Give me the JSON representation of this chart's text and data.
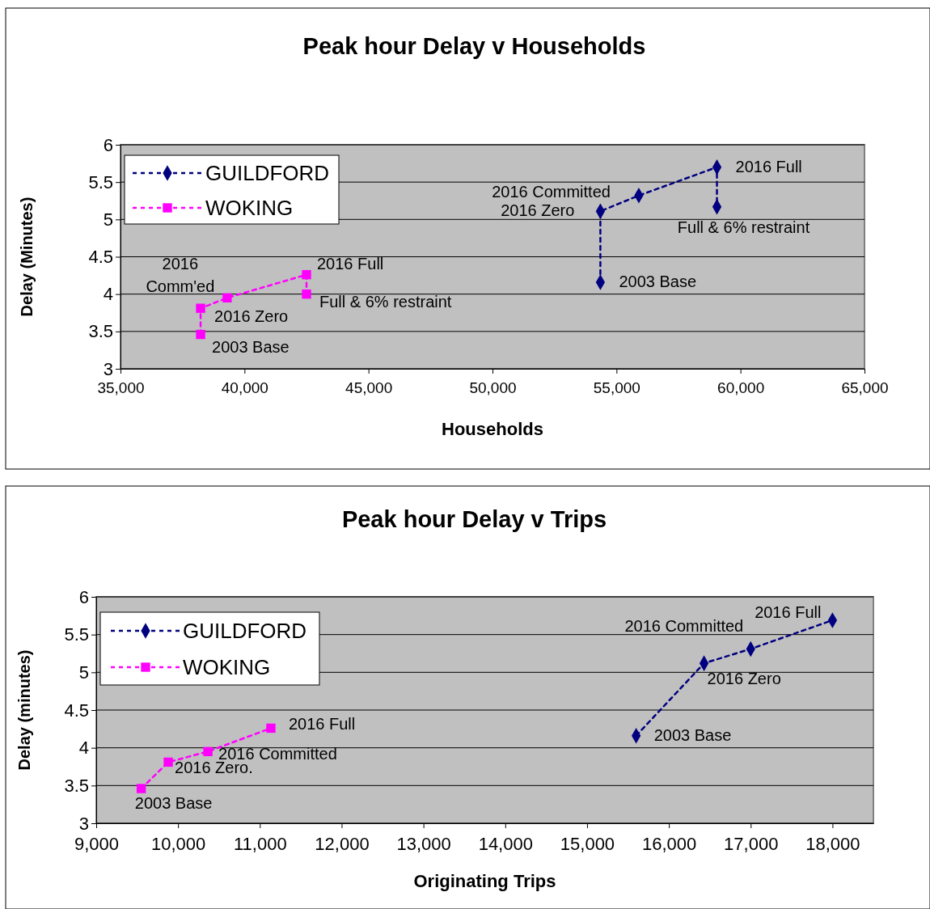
{
  "chart_data": [
    {
      "type": "line",
      "title": "Peak hour Delay v Households",
      "xlabel": "Households",
      "ylabel": "Delay (Minutes)",
      "grid": "y",
      "legend": "top left",
      "line_style": "dashed",
      "xlim": [
        35000,
        65000
      ],
      "xticks": [
        {
          "value": 35000,
          "label": "35,000"
        },
        {
          "value": 40000,
          "label": "40,000"
        },
        {
          "value": 45000,
          "label": "45,000"
        },
        {
          "value": 50000,
          "label": "50,000"
        },
        {
          "value": 55000,
          "label": "55,000"
        },
        {
          "value": 60000,
          "label": "60,000"
        },
        {
          "value": 65000,
          "label": "65,000"
        }
      ],
      "ylim": [
        3,
        6
      ],
      "yticks": [
        3,
        3.5,
        4,
        4.5,
        5,
        5.5,
        6
      ],
      "series": [
        {
          "name": "GUILDFORD",
          "color": "#000080",
          "marker": "diamond",
          "x": [
            54350,
            54350,
            55900,
            59050,
            59050
          ],
          "values": [
            4.16,
            5.11,
            5.32,
            5.7,
            5.17
          ]
        },
        {
          "name": "WOKING",
          "color": "#ff00ff",
          "marker": "square",
          "x": [
            38230,
            38230,
            39300,
            42500,
            42500
          ],
          "values": [
            3.46,
            3.81,
            3.95,
            4.26,
            4.0
          ]
        }
      ],
      "annotations": [
        {
          "text": "2003 Base",
          "x": 54350,
          "y": 4.16
        },
        {
          "text": "2016 Zero",
          "x": 54350,
          "y": 5.11
        },
        {
          "text": "2016 Committed",
          "x": 55900,
          "y": 5.32
        },
        {
          "text": "2016 Full",
          "x": 59050,
          "y": 5.7
        },
        {
          "text": "Full & 6% restraint",
          "x": 59050,
          "y": 5.17
        },
        {
          "text": "2003 Base",
          "x": 38230,
          "y": 3.46
        },
        {
          "text": "2016 Zero",
          "x": 38230,
          "y": 3.81
        },
        {
          "text": "2016 Comm'ed",
          "x": 39300,
          "y": 3.95
        },
        {
          "text": "2016 Full",
          "x": 42500,
          "y": 4.26
        },
        {
          "text": "Full & 6% restraint",
          "x": 42500,
          "y": 4.0
        }
      ]
    },
    {
      "type": "line",
      "title": "Peak hour Delay v Trips",
      "xlabel": "Originating Trips",
      "ylabel": "Delay (minutes)",
      "grid": "y",
      "legend": "top left",
      "line_style": "dashed",
      "xlim": [
        9000,
        18500
      ],
      "xticks": [
        {
          "value": 9000,
          "label": "9,000"
        },
        {
          "value": 10000,
          "label": "10,000"
        },
        {
          "value": 11000,
          "label": "11,000"
        },
        {
          "value": 12000,
          "label": "12,000"
        },
        {
          "value": 13000,
          "label": "13,000"
        },
        {
          "value": 14000,
          "label": "14,000"
        },
        {
          "value": 15000,
          "label": "15,000"
        },
        {
          "value": 16000,
          "label": "16,000"
        },
        {
          "value": 17000,
          "label": "17,000"
        },
        {
          "value": 18000,
          "label": "18,000"
        }
      ],
      "ylim": [
        3,
        6
      ],
      "yticks": [
        3,
        3.5,
        4,
        4.5,
        5,
        5.5,
        6
      ],
      "series": [
        {
          "name": "GUILDFORD",
          "color": "#000080",
          "marker": "diamond",
          "x": [
            15600,
            16430,
            17000,
            18000
          ],
          "values": [
            4.16,
            5.12,
            5.31,
            5.69
          ]
        },
        {
          "name": "WOKING",
          "color": "#ff00ff",
          "marker": "square",
          "x": [
            9550,
            9880,
            10365,
            11135
          ],
          "values": [
            3.46,
            3.81,
            3.95,
            4.26
          ]
        }
      ],
      "annotations": [
        {
          "text": "2003 Base",
          "x": 15600,
          "y": 4.16
        },
        {
          "text": "2016 Zero",
          "x": 16430,
          "y": 5.12
        },
        {
          "text": "2016 Committed",
          "x": 17000,
          "y": 5.31
        },
        {
          "text": "2016 Full",
          "x": 18000,
          "y": 5.69
        },
        {
          "text": "2003 Base",
          "x": 9550,
          "y": 3.46
        },
        {
          "text": "2016 Zero.",
          "x": 9880,
          "y": 3.81
        },
        {
          "text": "2016 Committed",
          "x": 10365,
          "y": 3.95
        },
        {
          "text": "2016 Full",
          "x": 11135,
          "y": 4.26
        }
      ]
    }
  ]
}
